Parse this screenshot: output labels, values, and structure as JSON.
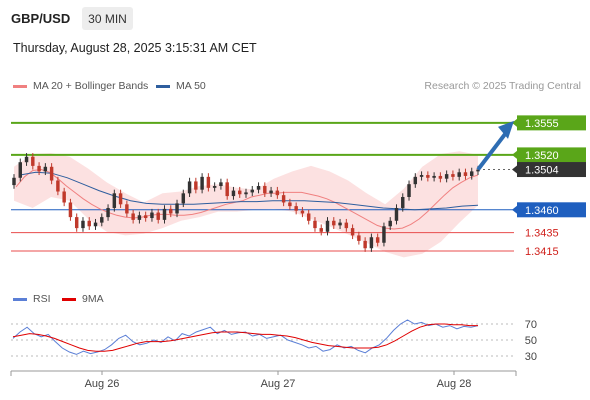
{
  "header": {
    "pair": "GBP/USD",
    "timeframe": "30 MIN",
    "timestamp": "Thursday, August 28, 2025 3:15:31 AM CET",
    "copyright": "Research © 2025 Trading Central"
  },
  "legend": {
    "ma20_label": "MA 20 + Bollinger Bands",
    "ma50_label": "MA 50",
    "rsi_label": "RSI",
    "ma9_label": "9MA"
  },
  "colors": {
    "candle_up": "#333333",
    "candle_down": "#c0392b",
    "bollinger_fill": "#fbdcdc",
    "ma20": "#f08080",
    "ma50": "#2e5e9e",
    "resistance": "#5aa619",
    "support_blue": "#1f5fbf",
    "support_red": "#e84c4c",
    "current_price_bg": "#333333",
    "rsi": "#5b7fd6",
    "rsi_ma9": "#e00000",
    "arrow": "#2e6db3"
  },
  "chart_data": [
    {
      "type": "candlestick",
      "title": "GBP/USD 30 MIN",
      "x_tick_labels": [
        "Aug 26",
        "Aug 27",
        "Aug 28"
      ],
      "ylim": [
        1.338,
        1.358
      ],
      "current_price": 1.3504,
      "levels": [
        {
          "value": 1.3555,
          "label": "1.3555",
          "kind": "target"
        },
        {
          "value": 1.352,
          "label": "1.3520",
          "kind": "resistance"
        },
        {
          "value": 1.3504,
          "label": "1.3504",
          "kind": "last"
        },
        {
          "value": 1.346,
          "label": "1.3460",
          "kind": "pivot"
        },
        {
          "value": 1.3435,
          "label": "1.3435",
          "kind": "support"
        },
        {
          "value": 1.3415,
          "label": "1.3415",
          "kind": "support"
        }
      ],
      "close": [
        1.3495,
        1.3512,
        1.3518,
        1.3508,
        1.3502,
        1.3507,
        1.3492,
        1.348,
        1.3468,
        1.3452,
        1.344,
        1.3448,
        1.3442,
        1.3446,
        1.3452,
        1.3462,
        1.3478,
        1.3466,
        1.3456,
        1.3449,
        1.3454,
        1.3451,
        1.3457,
        1.3449,
        1.3461,
        1.3456,
        1.3467,
        1.3478,
        1.3491,
        1.3482,
        1.3496,
        1.3484,
        1.3486,
        1.349,
        1.3475,
        1.3481,
        1.3477,
        1.3479,
        1.3482,
        1.3486,
        1.3478,
        1.3481,
        1.3476,
        1.3468,
        1.3464,
        1.3459,
        1.3456,
        1.3448,
        1.344,
        1.3436,
        1.3448,
        1.3443,
        1.3446,
        1.344,
        1.3432,
        1.3426,
        1.3418,
        1.343,
        1.3424,
        1.3442,
        1.3448,
        1.3462,
        1.3474,
        1.3488,
        1.3496,
        1.3498,
        1.3495,
        1.3497,
        1.3494,
        1.3499,
        1.3496,
        1.3501,
        1.3497,
        1.3502,
        1.3504
      ],
      "ma20": [
        1.3485,
        1.3496,
        1.3503,
        1.3504,
        1.3501,
        1.3494,
        1.3486,
        1.3479,
        1.3472,
        1.3466,
        1.3461,
        1.3457,
        1.3454,
        1.3452,
        1.3451,
        1.3452,
        1.3454,
        1.3455,
        1.3455,
        1.3454,
        1.3454,
        1.3455,
        1.3457,
        1.346,
        1.3463,
        1.3466,
        1.3468,
        1.347,
        1.3474,
        1.3476,
        1.3478,
        1.3478,
        1.3479,
        1.3479,
        1.3479,
        1.3477,
        1.3475,
        1.3472,
        1.3468,
        1.3463,
        1.3458,
        1.3453,
        1.3448,
        1.3443,
        1.344,
        1.3439,
        1.344,
        1.3444,
        1.345,
        1.3458,
        1.3467,
        1.3476,
        1.3484,
        1.349,
        1.3495,
        1.3498
      ],
      "ma50": [
        1.3498,
        1.3501,
        1.35,
        1.3495,
        1.3488,
        1.3481,
        1.3475,
        1.347,
        1.3467,
        1.3466,
        1.3466,
        1.3466,
        1.3467,
        1.3468,
        1.3469,
        1.3469,
        1.347,
        1.347,
        1.347,
        1.3469,
        1.3468,
        1.3466,
        1.3464,
        1.3462,
        1.3461,
        1.346,
        1.3461,
        1.3462,
        1.3464,
        1.3465
      ],
      "bollinger_upper": [
        1.3507,
        1.3521,
        1.3522,
        1.3518,
        1.3505,
        1.349,
        1.3478,
        1.3468,
        1.3478,
        1.348,
        1.3486,
        1.3488,
        1.3484,
        1.3482,
        1.3494,
        1.3502,
        1.3508,
        1.3502,
        1.3492,
        1.3478,
        1.3466,
        1.3483,
        1.3507,
        1.3521,
        1.3524,
        1.352
      ],
      "bollinger_lower": [
        1.347,
        1.3462,
        1.3474,
        1.347,
        1.345,
        1.3436,
        1.3432,
        1.3434,
        1.344,
        1.3448,
        1.3452,
        1.3458,
        1.3458,
        1.346,
        1.3461,
        1.3458,
        1.345,
        1.3442,
        1.3433,
        1.3424,
        1.3414,
        1.3408,
        1.3412,
        1.3425,
        1.3446,
        1.3465
      ]
    },
    {
      "type": "line",
      "title": "RSI",
      "yticks": [
        70,
        50,
        30
      ],
      "series": [
        {
          "name": "RSI",
          "values": [
            52,
            60,
            66,
            58,
            54,
            57,
            48,
            40,
            35,
            32,
            36,
            33,
            35,
            38,
            44,
            52,
            56,
            48,
            44,
            46,
            50,
            47,
            54,
            49,
            58,
            55,
            60,
            63,
            66,
            58,
            62,
            57,
            59,
            60,
            55,
            57,
            52,
            54,
            56,
            50,
            47,
            44,
            40,
            42,
            36,
            38,
            44,
            40,
            42,
            37,
            34,
            40,
            44,
            52,
            62,
            70,
            75,
            70,
            72,
            68,
            70,
            66,
            68,
            64,
            67,
            66,
            68
          ]
        },
        {
          "name": "9MA",
          "values": [
            54,
            56,
            58,
            57,
            55,
            52,
            48,
            44,
            40,
            37,
            36,
            36,
            37,
            40,
            43,
            46,
            48,
            48,
            48,
            49,
            51,
            53,
            55,
            57,
            59,
            60,
            60,
            60,
            59,
            58,
            57,
            57,
            56,
            55,
            53,
            50,
            47,
            45,
            43,
            42,
            41,
            40,
            40,
            40,
            41,
            44,
            49,
            55,
            61,
            66,
            69,
            70,
            70,
            69,
            69,
            68,
            68
          ]
        }
      ]
    }
  ]
}
